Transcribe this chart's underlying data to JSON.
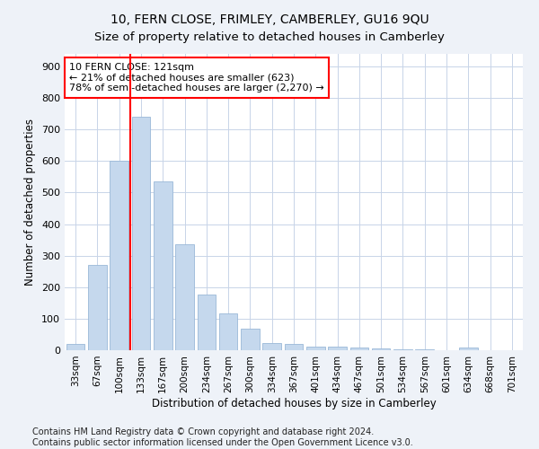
{
  "title1": "10, FERN CLOSE, FRIMLEY, CAMBERLEY, GU16 9QU",
  "title2": "Size of property relative to detached houses in Camberley",
  "xlabel": "Distribution of detached houses by size in Camberley",
  "ylabel": "Number of detached properties",
  "categories": [
    "33sqm",
    "67sqm",
    "100sqm",
    "133sqm",
    "167sqm",
    "200sqm",
    "234sqm",
    "267sqm",
    "300sqm",
    "334sqm",
    "367sqm",
    "401sqm",
    "434sqm",
    "467sqm",
    "501sqm",
    "534sqm",
    "567sqm",
    "601sqm",
    "634sqm",
    "668sqm",
    "701sqm"
  ],
  "values": [
    20,
    270,
    600,
    740,
    535,
    335,
    178,
    118,
    68,
    22,
    20,
    12,
    10,
    8,
    7,
    4,
    4,
    0,
    8,
    0,
    0
  ],
  "bar_color": "#c5d8ed",
  "bar_edge_color": "#9ab8d8",
  "vline_color": "red",
  "vline_pos": 2.5,
  "annotation_text": "10 FERN CLOSE: 121sqm\n← 21% of detached houses are smaller (623)\n78% of semi-detached houses are larger (2,270) →",
  "annotation_box_color": "white",
  "annotation_box_edge_color": "red",
  "ylim": [
    0,
    940
  ],
  "yticks": [
    0,
    100,
    200,
    300,
    400,
    500,
    600,
    700,
    800,
    900
  ],
  "footnote": "Contains HM Land Registry data © Crown copyright and database right 2024.\nContains public sector information licensed under the Open Government Licence v3.0.",
  "bg_color": "#eef2f8",
  "plot_bg_color": "#ffffff",
  "grid_color": "#c8d4e8",
  "title_fontsize": 10,
  "footnote_fontsize": 7
}
